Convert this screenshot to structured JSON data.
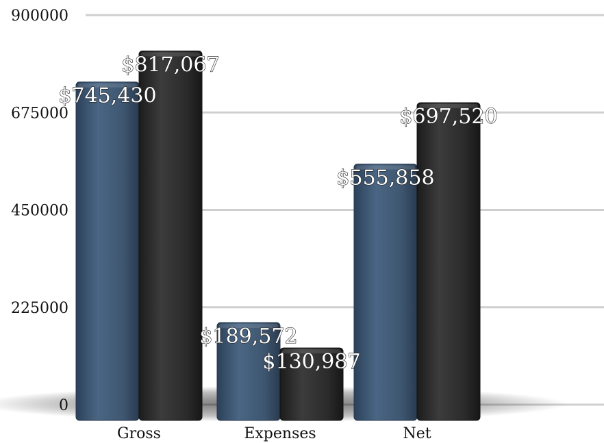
{
  "chart_data": {
    "type": "bar",
    "categories": [
      "Gross",
      "Expenses",
      "Net"
    ],
    "series": [
      {
        "values": [
          745430,
          189572,
          555858
        ],
        "color": "#3e5670"
      },
      {
        "values": [
          817067,
          130987,
          697520
        ],
        "color": "#2b2b2b"
      }
    ],
    "data_labels": [
      [
        "$745,430",
        "$189,572",
        "$555,858"
      ],
      [
        "$817,067",
        "$130,987",
        "$697,520"
      ]
    ],
    "yticks": [
      "0",
      "225000",
      "450000",
      "675000",
      "900000"
    ],
    "ylim": [
      0,
      900000
    ],
    "grid": true,
    "legend": "none"
  }
}
